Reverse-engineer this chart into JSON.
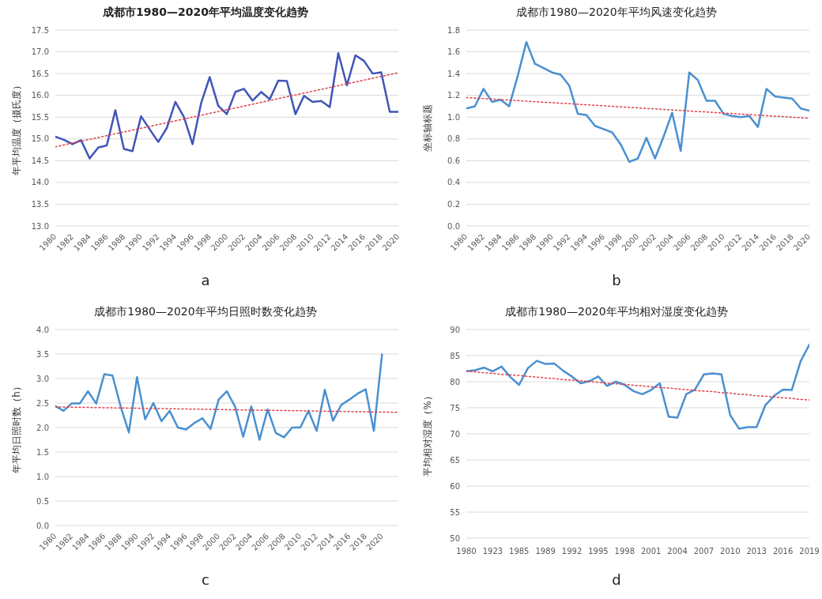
{
  "chart_data": [
    {
      "type": "line",
      "title": "成都市1980—2020年平均温度变化趋势",
      "ylabel": "年平均温度（摄氏度）",
      "annotations": [
        "a"
      ],
      "grid": "y",
      "x": [
        1980,
        1981,
        1982,
        1983,
        1984,
        1985,
        1986,
        1987,
        1988,
        1989,
        1990,
        1991,
        1992,
        1993,
        1994,
        1995,
        1996,
        1997,
        1998,
        1999,
        2000,
        2001,
        2002,
        2003,
        2004,
        2005,
        2006,
        2007,
        2008,
        2009,
        2010,
        2011,
        2012,
        2013,
        2014,
        2015,
        2016,
        2017,
        2018,
        2019,
        2020
      ],
      "xlim": [
        1980,
        2020
      ],
      "xticks": [
        1980,
        1982,
        1984,
        1986,
        1988,
        1990,
        1992,
        1994,
        1996,
        1998,
        2000,
        2002,
        2004,
        2006,
        2008,
        2010,
        2012,
        2014,
        2016,
        2018,
        2020
      ],
      "ylim": [
        13,
        17.5
      ],
      "yticks": [
        {
          "value": 13,
          "label": "13.0"
        },
        13.5,
        {
          "value": 14,
          "label": "14.0"
        },
        14.5,
        {
          "value": 15,
          "label": "15.0"
        },
        15.5,
        {
          "value": 16,
          "label": "16.0"
        },
        16.5,
        {
          "value": 17,
          "label": "17.0"
        },
        17.5
      ],
      "series": [
        {
          "color": "#3f55b8",
          "values": [
            15.05,
            14.98,
            14.88,
            14.97,
            14.55,
            14.8,
            14.85,
            15.66,
            14.77,
            14.72,
            15.52,
            15.22,
            14.93,
            15.25,
            15.85,
            15.5,
            14.88,
            15.82,
            16.42,
            15.76,
            15.57,
            16.08,
            16.15,
            15.88,
            16.08,
            15.91,
            16.34,
            16.33,
            15.57,
            15.99,
            15.85,
            15.87,
            15.73,
            16.97,
            16.23,
            16.92,
            16.79,
            16.5,
            16.53,
            15.62,
            15.62
          ]
        },
        {
          "type": "line",
          "color": "#e0404a",
          "line_style": "dotted",
          "x": [
            1980,
            2020
          ],
          "values": [
            14.82,
            16.52
          ]
        }
      ]
    },
    {
      "type": "line",
      "title": "成都市1980—2020年平均风速变化趋势",
      "ylabel": "坐标轴标题",
      "annotations": [
        "b"
      ],
      "grid": "y",
      "x": [
        1980,
        1981,
        1982,
        1983,
        1984,
        1985,
        1986,
        1987,
        1988,
        1989,
        1990,
        1991,
        1992,
        1993,
        1994,
        1995,
        1996,
        1997,
        1998,
        1999,
        2000,
        2001,
        2002,
        2003,
        2004,
        2005,
        2006,
        2007,
        2008,
        2009,
        2010,
        2011,
        2012,
        2013,
        2014,
        2015,
        2016,
        2017,
        2018,
        2019,
        2020
      ],
      "xlim": [
        1980,
        2020
      ],
      "xticks": [
        1980,
        1982,
        1984,
        1986,
        1988,
        1990,
        1992,
        1994,
        1996,
        1998,
        2000,
        2002,
        2004,
        2006,
        2008,
        2010,
        2012,
        2014,
        2016,
        2018,
        2020
      ],
      "ylim": [
        0,
        1.8
      ],
      "yticks": [
        {
          "value": 0,
          "label": "0.0"
        },
        0.2,
        0.4,
        0.6,
        0.8,
        {
          "value": 1,
          "label": "1.0"
        },
        1.2,
        1.4,
        1.6,
        1.8
      ],
      "series": [
        {
          "color": "#4a90d0",
          "values": [
            1.08,
            1.1,
            1.26,
            1.14,
            1.16,
            1.1,
            1.38,
            1.69,
            1.49,
            1.45,
            1.41,
            1.39,
            1.29,
            1.03,
            1.02,
            0.92,
            0.89,
            0.86,
            0.75,
            0.59,
            0.62,
            0.81,
            0.62,
            0.82,
            1.04,
            0.69,
            1.41,
            1.34,
            1.15,
            1.15,
            1.03,
            1.01,
            1.0,
            1.01,
            0.91,
            1.26,
            1.19,
            1.18,
            1.17,
            1.08,
            1.06
          ]
        },
        {
          "type": "line",
          "color": "#e0404a",
          "line_style": "dotted",
          "x": [
            1980,
            2020
          ],
          "values": [
            1.18,
            0.99
          ]
        }
      ]
    },
    {
      "type": "line",
      "title": "成都市1980—2020年平均日照时数变化趋势",
      "ylabel": "年平均日照时数（h）",
      "annotations": [
        "c"
      ],
      "grid": "y",
      "x": [
        1980,
        1981,
        1982,
        1983,
        1984,
        1985,
        1986,
        1987,
        1988,
        1989,
        1990,
        1991,
        1992,
        1993,
        1994,
        1995,
        1996,
        1997,
        1998,
        1999,
        2000,
        2001,
        2002,
        2003,
        2004,
        2005,
        2006,
        2007,
        2008,
        2009,
        2010,
        2011,
        2012,
        2013,
        2014,
        2015,
        2016,
        2017,
        2018,
        2019,
        2020
      ],
      "xlim": [
        1980,
        2022
      ],
      "xticks": [
        1980,
        1982,
        1984,
        1986,
        1988,
        1990,
        1992,
        1994,
        1996,
        1998,
        2000,
        2002,
        2004,
        2006,
        2008,
        2010,
        2012,
        2014,
        2016,
        2018,
        2020
      ],
      "ylim": [
        0,
        4
      ],
      "yticks": [
        {
          "value": 0,
          "label": "0.0"
        },
        0.5,
        {
          "value": 1,
          "label": "1.0"
        },
        1.5,
        {
          "value": 2,
          "label": "2.0"
        },
        2.5,
        {
          "value": 3,
          "label": "3.0"
        },
        3.5,
        {
          "value": 4,
          "label": "4.0"
        }
      ],
      "series": [
        {
          "color": "#4a90d0",
          "values": [
            2.44,
            2.34,
            2.49,
            2.49,
            2.74,
            2.49,
            3.09,
            3.06,
            2.43,
            1.9,
            3.03,
            2.17,
            2.5,
            2.13,
            2.34,
            2.0,
            1.96,
            2.09,
            2.19,
            1.97,
            2.57,
            2.74,
            2.43,
            1.81,
            2.43,
            1.75,
            2.37,
            1.89,
            1.8,
            2.0,
            2.0,
            2.34,
            1.93,
            2.77,
            2.14,
            2.46,
            2.57,
            2.69,
            2.78,
            1.93,
            3.49
          ]
        },
        {
          "type": "line",
          "color": "#e0404a",
          "line_style": "dotted",
          "x": [
            1980,
            2022
          ],
          "values": [
            2.42,
            2.31
          ]
        }
      ]
    },
    {
      "type": "line",
      "title": "成都市1980—2020年平均相对湿度变化趋势",
      "ylabel": "平均相对湿度（%）",
      "annotations": [
        "d"
      ],
      "grid": "y",
      "categories": [
        "1980",
        null,
        null,
        "1923",
        null,
        null,
        "1985",
        null,
        null,
        "1989",
        null,
        null,
        "1992",
        null,
        null,
        "1995",
        null,
        null,
        "1998",
        null,
        null,
        "2001",
        null,
        null,
        "2004",
        null,
        null,
        "2007",
        null,
        null,
        "2010",
        null,
        null,
        "2013",
        null,
        null,
        "2016",
        null,
        null,
        "2019"
      ],
      "ylim": [
        50,
        90
      ],
      "yticks": [
        50,
        55,
        60,
        65,
        70,
        75,
        80,
        85,
        90
      ],
      "series": [
        {
          "color": "#4a90d0",
          "values": [
            82.0,
            82.2,
            82.7,
            82.0,
            82.9,
            80.9,
            79.4,
            82.6,
            84.0,
            83.4,
            83.5,
            82.1,
            81.0,
            79.7,
            80.1,
            81.0,
            79.2,
            80.0,
            79.4,
            78.2,
            77.6,
            78.4,
            79.7,
            73.3,
            73.1,
            77.6,
            78.5,
            81.4,
            81.6,
            81.4,
            73.6,
            71.0,
            71.3,
            71.3,
            75.5,
            77.3,
            78.5,
            78.4,
            83.9,
            87.1
          ]
        },
        {
          "type": "line",
          "color": "#e0404a",
          "line_style": "dotted",
          "values": [
            82.0,
            81.9,
            81.7,
            81.6,
            81.4,
            81.3,
            81.2,
            81.0,
            80.9,
            80.7,
            80.6,
            80.4,
            80.3,
            80.2,
            80.0,
            79.9,
            79.7,
            79.6,
            79.5,
            79.3,
            79.2,
            79.0,
            78.9,
            78.8,
            78.6,
            78.5,
            78.3,
            78.2,
            78.1,
            77.9,
            77.8,
            77.6,
            77.5,
            77.3,
            77.2,
            77.1,
            76.9,
            76.8,
            76.6,
            76.5
          ]
        }
      ]
    }
  ]
}
